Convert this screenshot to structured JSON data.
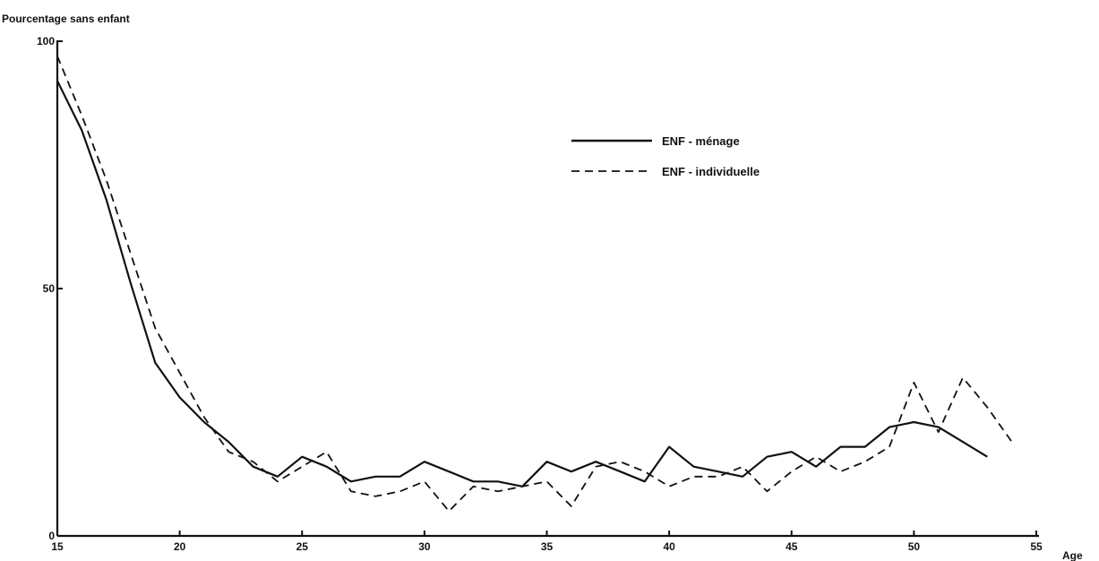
{
  "chart_data": {
    "type": "line",
    "ylabel": "Pourcentage sans enfant",
    "xlabel": "Age",
    "xlim": [
      15,
      55
    ],
    "ylim": [
      0,
      100
    ],
    "xticks": [
      15,
      20,
      25,
      30,
      35,
      40,
      45,
      50,
      55
    ],
    "yticks": [
      0,
      50,
      100
    ],
    "grid": false,
    "legend_position": "top-right",
    "series": [
      {
        "name": "ENF - ménage",
        "style": "solid",
        "color": "#111111",
        "x": [
          15,
          16,
          17,
          18,
          19,
          20,
          21,
          22,
          23,
          24,
          25,
          26,
          27,
          28,
          29,
          30,
          31,
          32,
          33,
          34,
          35,
          36,
          37,
          38,
          39,
          40,
          41,
          42,
          43,
          44,
          45,
          46,
          47,
          48,
          49,
          50,
          51,
          52,
          53
        ],
        "y": [
          92,
          82,
          68,
          51,
          35,
          28,
          23,
          19,
          14,
          12,
          16,
          14,
          11,
          12,
          12,
          15,
          13,
          11,
          11,
          10,
          15,
          13,
          15,
          13,
          11,
          18,
          14,
          13,
          12,
          16,
          17,
          14,
          18,
          18,
          22,
          23,
          22,
          19,
          16
        ]
      },
      {
        "name": "ENF - individuelle",
        "style": "dashed",
        "color": "#111111",
        "x": [
          15,
          16,
          17,
          18,
          19,
          20,
          21,
          22,
          23,
          24,
          25,
          26,
          27,
          28,
          29,
          30,
          31,
          32,
          33,
          34,
          35,
          36,
          37,
          38,
          39,
          40,
          41,
          42,
          43,
          44,
          45,
          46,
          47,
          48,
          49,
          50,
          51,
          52,
          53,
          54
        ],
        "y": [
          97,
          85,
          72,
          57,
          42,
          33,
          24,
          17,
          15,
          11,
          14,
          17,
          9,
          8,
          9,
          11,
          5,
          10,
          9,
          10,
          11,
          6,
          14,
          15,
          13,
          10,
          12,
          12,
          14,
          9,
          13,
          16,
          13,
          15,
          18,
          31,
          21,
          32,
          26,
          19
        ]
      }
    ]
  }
}
